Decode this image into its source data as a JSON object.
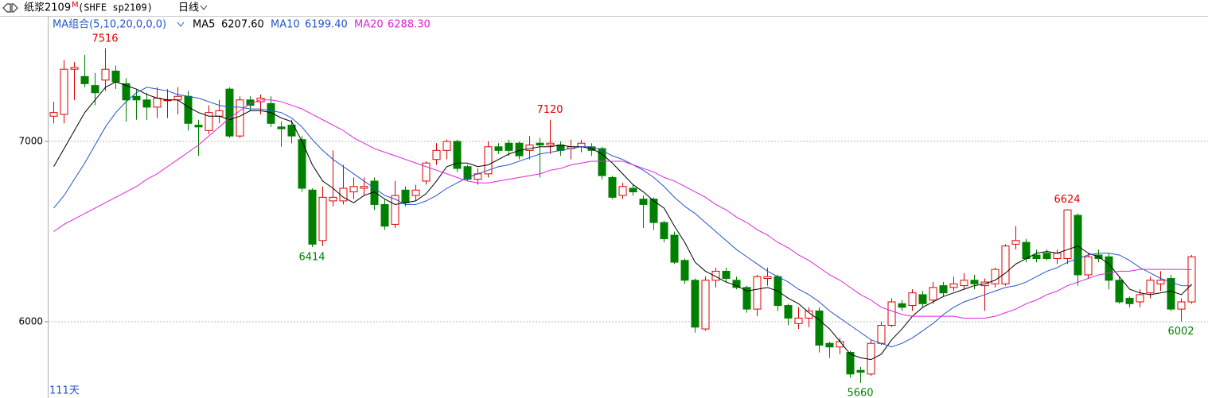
{
  "chart_data": {
    "type": "candlestick",
    "title": "纸浆2109",
    "title_mark": "M",
    "subtitle": "(SHFE sp2109)",
    "period": "日线",
    "ma_group": "MA组合(5,10,20,0,0,0)",
    "day_count": "111天",
    "up_color": "#e00000",
    "down_color": "#008000",
    "ylim": [
      5577,
      7696
    ],
    "yticks": [
      6000,
      7000
    ],
    "grid": true,
    "open": [
      7140,
      7150,
      7400,
      7360,
      7310,
      7340,
      7390,
      7320,
      7250,
      7230,
      7190,
      7230,
      7230,
      7250,
      7090,
      7060,
      7140,
      7290,
      7030,
      7230,
      7220,
      7210,
      7080,
      7090,
      7010,
      6730,
      6450,
      6670,
      6670,
      6720,
      6740,
      6780,
      6650,
      6540,
      6730,
      6700,
      6780,
      6900,
      6950,
      7000,
      6860,
      6790,
      6820,
      6970,
      6990,
      6990,
      6950,
      6990,
      6980,
      6980,
      6960,
      6970,
      6970,
      6960,
      6800,
      6700,
      6740,
      6680,
      6680,
      6550,
      6480,
      6340,
      6230,
      5960,
      6230,
      6280,
      6230,
      6190,
      6070,
      6240,
      6250,
      6090,
      5990,
      6020,
      6060,
      5880,
      5860,
      5830,
      5730,
      5710,
      5880,
      5980,
      6100,
      6090,
      6150,
      6120,
      6200,
      6190,
      6200,
      6230,
      6200,
      6210,
      6210,
      6430,
      6440,
      6370,
      6380,
      6350,
      6350,
      6590,
      6260,
      6370,
      6360,
      6230,
      6130,
      6110,
      6160,
      6210,
      6240,
      6070,
      6110
    ],
    "high": [
      7220,
      7450,
      7440,
      7480,
      7380,
      7516,
      7420,
      7350,
      7290,
      7270,
      7300,
      7290,
      7300,
      7280,
      7120,
      7200,
      7230,
      7300,
      7250,
      7250,
      7260,
      7250,
      7110,
      7120,
      7030,
      6740,
      6750,
      6950,
      6870,
      6800,
      6800,
      6800,
      6680,
      6780,
      6750,
      6760,
      6890,
      6990,
      7010,
      7010,
      6870,
      6850,
      7000,
      6990,
      7010,
      7000,
      7030,
      7020,
      7120,
      7000,
      7010,
      7010,
      6990,
      6970,
      6810,
      6770,
      6760,
      6700,
      6690,
      6560,
      6500,
      6350,
      6240,
      6250,
      6300,
      6300,
      6250,
      6200,
      6260,
      6300,
      6260,
      6100,
      6080,
      6080,
      6080,
      5890,
      5910,
      5840,
      5750,
      5900,
      6000,
      6130,
      6120,
      6180,
      6170,
      6220,
      6220,
      6250,
      6270,
      6260,
      6240,
      6300,
      6430,
      6530,
      6460,
      6400,
      6400,
      6400,
      6624,
      6600,
      6380,
      6400,
      6380,
      6250,
      6140,
      6180,
      6250,
      6280,
      6260,
      6130,
      6370
    ],
    "low": [
      7100,
      7100,
      7230,
      7300,
      7200,
      7280,
      7290,
      7110,
      7120,
      7120,
      7130,
      7130,
      7150,
      7060,
      6920,
      7040,
      7100,
      7020,
      7020,
      7170,
      7150,
      7080,
      6970,
      6990,
      6720,
      6414,
      6420,
      6640,
      6650,
      6680,
      6700,
      6620,
      6510,
      6520,
      6640,
      6670,
      6760,
      6870,
      6900,
      6830,
      6780,
      6760,
      6800,
      6930,
      6920,
      6900,
      6900,
      6800,
      6930,
      6920,
      6900,
      6940,
      6920,
      6790,
      6680,
      6680,
      6700,
      6520,
      6510,
      6440,
      6320,
      6210,
      5940,
      5950,
      6190,
      6220,
      6180,
      6050,
      6030,
      6200,
      6060,
      5980,
      5960,
      5970,
      5830,
      5800,
      5820,
      5690,
      5660,
      5700,
      5870,
      5970,
      6060,
      6060,
      6080,
      6100,
      6140,
      6170,
      6180,
      6180,
      6060,
      6190,
      6200,
      6400,
      6330,
      6330,
      6340,
      6320,
      6320,
      6200,
      6240,
      6330,
      6180,
      6100,
      6080,
      6080,
      6130,
      6170,
      6060,
      6002,
      6100
    ],
    "close": [
      7160,
      7400,
      7410,
      7320,
      7270,
      7400,
      7330,
      7230,
      7230,
      7190,
      7240,
      7230,
      7250,
      7100,
      7080,
      7160,
      7170,
      7030,
      7230,
      7200,
      7240,
      7100,
      7070,
      7030,
      6740,
      6430,
      6690,
      6690,
      6740,
      6750,
      6750,
      6650,
      6530,
      6700,
      6660,
      6730,
      6880,
      6950,
      7000,
      6850,
      6790,
      6820,
      6970,
      6950,
      6950,
      6920,
      6980,
      6980,
      6990,
      6950,
      6970,
      6990,
      6950,
      6810,
      6690,
      6750,
      6720,
      6650,
      6550,
      6460,
      6330,
      6230,
      5970,
      6230,
      6280,
      6240,
      6190,
      6070,
      6250,
      6250,
      6090,
      6020,
      6020,
      6060,
      5870,
      5860,
      5890,
      5710,
      5720,
      5880,
      5980,
      6110,
      6080,
      6160,
      6100,
      6190,
      6160,
      6210,
      6230,
      6210,
      6220,
      6290,
      6420,
      6450,
      6350,
      6350,
      6350,
      6380,
      6620,
      6260,
      6360,
      6350,
      6230,
      6110,
      6100,
      6150,
      6230,
      6230,
      6070,
      6110,
      6360
    ],
    "overlays": [
      {
        "name": "MA5",
        "color": "#000000",
        "value_label": "6207.60",
        "values": [
          6860,
          6960,
          7060,
          7160,
          7230,
          7300,
          7330,
          7310,
          7290,
          7260,
          7240,
          7230,
          7230,
          7190,
          7160,
          7140,
          7140,
          7120,
          7140,
          7170,
          7170,
          7160,
          7130,
          7110,
          7000,
          6870,
          6780,
          6740,
          6690,
          6660,
          6700,
          6720,
          6680,
          6650,
          6660,
          6670,
          6710,
          6780,
          6860,
          6880,
          6880,
          6860,
          6870,
          6900,
          6930,
          6950,
          6960,
          6970,
          6970,
          6980,
          6970,
          6970,
          6960,
          6930,
          6880,
          6820,
          6760,
          6720,
          6670,
          6630,
          6530,
          6440,
          6330,
          6280,
          6250,
          6220,
          6200,
          6170,
          6180,
          6190,
          6170,
          6130,
          6100,
          6050,
          6010,
          5960,
          5890,
          5820,
          5800,
          5790,
          5820,
          5900,
          5960,
          6030,
          6080,
          6110,
          6140,
          6160,
          6180,
          6200,
          6210,
          6230,
          6270,
          6320,
          6350,
          6380,
          6390,
          6380,
          6400,
          6420,
          6380,
          6360,
          6320,
          6250,
          6180,
          6160,
          6150,
          6160,
          6170,
          6150,
          6207.6
        ]
      },
      {
        "name": "MA10",
        "color": "#2255cc",
        "value_label": "6199.40",
        "values": [
          6630,
          6700,
          6790,
          6880,
          6980,
          7080,
          7160,
          7220,
          7270,
          7300,
          7290,
          7280,
          7260,
          7250,
          7240,
          7220,
          7200,
          7190,
          7190,
          7180,
          7180,
          7170,
          7160,
          7130,
          7080,
          7010,
          6950,
          6900,
          6860,
          6820,
          6780,
          6740,
          6700,
          6680,
          6650,
          6650,
          6670,
          6700,
          6740,
          6770,
          6800,
          6820,
          6840,
          6860,
          6870,
          6890,
          6910,
          6930,
          6940,
          6950,
          6960,
          6970,
          6970,
          6950,
          6920,
          6900,
          6870,
          6840,
          6800,
          6750,
          6690,
          6640,
          6600,
          6550,
          6500,
          6450,
          6400,
          6360,
          6320,
          6280,
          6250,
          6220,
          6180,
          6150,
          6110,
          6060,
          6020,
          5980,
          5940,
          5900,
          5880,
          5860,
          5880,
          5910,
          5950,
          5990,
          6040,
          6080,
          6110,
          6130,
          6150,
          6170,
          6190,
          6200,
          6220,
          6250,
          6280,
          6300,
          6330,
          6350,
          6370,
          6380,
          6380,
          6370,
          6340,
          6300,
          6270,
          6240,
          6220,
          6200,
          6199.4
        ]
      },
      {
        "name": "MA20",
        "color": "#e020e0",
        "value_label": "6288.30",
        "values": [
          6500,
          6540,
          6570,
          6600,
          6630,
          6660,
          6690,
          6720,
          6750,
          6790,
          6820,
          6860,
          6900,
          6940,
          6980,
          7030,
          7080,
          7130,
          7170,
          7210,
          7230,
          7230,
          7220,
          7200,
          7180,
          7150,
          7120,
          7090,
          7060,
          7020,
          6990,
          6960,
          6940,
          6920,
          6900,
          6880,
          6860,
          6840,
          6820,
          6800,
          6780,
          6770,
          6770,
          6780,
          6790,
          6800,
          6810,
          6820,
          6840,
          6850,
          6870,
          6880,
          6890,
          6890,
          6890,
          6890,
          6870,
          6850,
          6830,
          6800,
          6780,
          6750,
          6720,
          6690,
          6650,
          6620,
          6580,
          6550,
          6510,
          6480,
          6440,
          6410,
          6370,
          6340,
          6300,
          6260,
          6230,
          6190,
          6150,
          6120,
          6080,
          6060,
          6040,
          6030,
          6030,
          6030,
          6030,
          6030,
          6020,
          6020,
          6020,
          6030,
          6050,
          6070,
          6100,
          6120,
          6150,
          6170,
          6200,
          6220,
          6240,
          6260,
          6270,
          6280,
          6280,
          6290,
          6290,
          6290,
          6290,
          6290,
          6288.3
        ]
      }
    ]
  }
}
